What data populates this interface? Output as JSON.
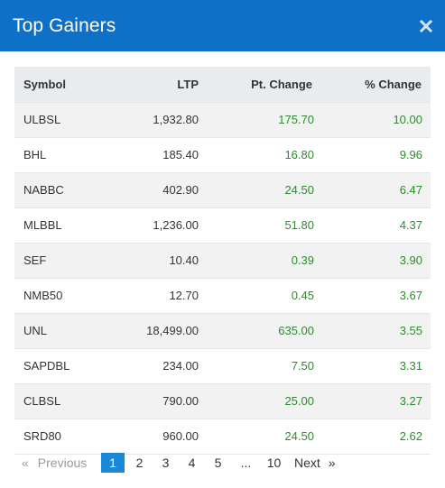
{
  "modal": {
    "title": "Top Gainers",
    "close_icon": "close-icon",
    "header_color": "#0e71c7"
  },
  "table": {
    "columns": [
      "Symbol",
      "LTP",
      "Pt. Change",
      "% Change"
    ],
    "rows": [
      {
        "symbol": "ULBSL",
        "ltp": "1,932.80",
        "pt_change": "175.70",
        "pct_change": "10.00"
      },
      {
        "symbol": "BHL",
        "ltp": "185.40",
        "pt_change": "16.80",
        "pct_change": "9.96"
      },
      {
        "symbol": "NABBC",
        "ltp": "402.90",
        "pt_change": "24.50",
        "pct_change": "6.47"
      },
      {
        "symbol": "MLBBL",
        "ltp": "1,236.00",
        "pt_change": "51.80",
        "pct_change": "4.37"
      },
      {
        "symbol": "SEF",
        "ltp": "10.40",
        "pt_change": "0.39",
        "pct_change": "3.90"
      },
      {
        "symbol": "NMB50",
        "ltp": "12.70",
        "pt_change": "0.45",
        "pct_change": "3.67"
      },
      {
        "symbol": "UNL",
        "ltp": "18,499.00",
        "pt_change": "635.00",
        "pct_change": "3.55"
      },
      {
        "symbol": "SAPDBL",
        "ltp": "234.00",
        "pt_change": "7.50",
        "pct_change": "3.31"
      },
      {
        "symbol": "CLBSL",
        "ltp": "790.00",
        "pt_change": "25.00",
        "pct_change": "3.27"
      },
      {
        "symbol": "SRD80",
        "ltp": "960.00",
        "pt_change": "24.50",
        "pct_change": "2.62"
      }
    ],
    "positive_color": "#2e8b2e"
  },
  "pagination": {
    "prev_arrow": "«",
    "prev_label": "Previous",
    "pages": [
      "1",
      "2",
      "3",
      "4",
      "5"
    ],
    "ellipsis": "...",
    "last_page": "10",
    "next_label": "Next",
    "next_arrow": "»",
    "active_page": "1",
    "active_color": "#1b87d8"
  }
}
